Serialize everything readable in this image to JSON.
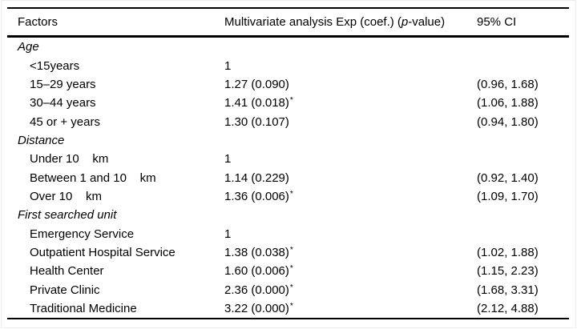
{
  "table": {
    "header": {
      "factors": "Factors",
      "estimate_pre": "Multivariate analysis Exp (coef.) (",
      "estimate_p": "p",
      "estimate_post": "-value)",
      "ci": "95% CI"
    },
    "groups": [
      {
        "label": "Age",
        "items": [
          {
            "factor": "<15years",
            "value": "1",
            "sup": "",
            "ci": ""
          },
          {
            "factor": "15–29 years",
            "value": "1.27 (0.090)",
            "sup": "",
            "ci": "(0.96, 1.68)"
          },
          {
            "factor": "30–44 years",
            "value": "1.41 (0.018)",
            "sup": "*",
            "ci": "(1.06, 1.88)"
          },
          {
            "factor": "45 or + years",
            "value": "1.30 (0.107)",
            "sup": "",
            "ci": "(0.94, 1.80)"
          }
        ]
      },
      {
        "label": "Distance",
        "items": [
          {
            "factor": "Under 10    km",
            "value": "1",
            "sup": "",
            "ci": ""
          },
          {
            "factor": "Between 1 and 10    km",
            "value": "1.14 (0.229)",
            "sup": "",
            "ci": "(0.92, 1.40)"
          },
          {
            "factor": "Over 10    km",
            "value": "1.36 (0.006)",
            "sup": "*",
            "ci": "(1.09, 1.70)"
          }
        ]
      },
      {
        "label": "First searched unit",
        "items": [
          {
            "factor": "Emergency Service",
            "value": "1",
            "sup": "",
            "ci": ""
          },
          {
            "factor": "Outpatient Hospital Service",
            "value": "1.38 (0.038)",
            "sup": "*",
            "ci": "(1.02, 1.88)"
          },
          {
            "factor": "Health Center",
            "value": "1.60 (0.006)",
            "sup": "*",
            "ci": "(1.15, 2.23)"
          },
          {
            "factor": "Private Clinic",
            "value": "2.36 (0.000)",
            "sup": "*",
            "ci": "(1.68, 3.31)"
          },
          {
            "factor": "Traditional Medicine",
            "value": "3.22 (0.000)",
            "sup": "*",
            "ci": "(2.12, 4.88)"
          }
        ]
      }
    ]
  }
}
